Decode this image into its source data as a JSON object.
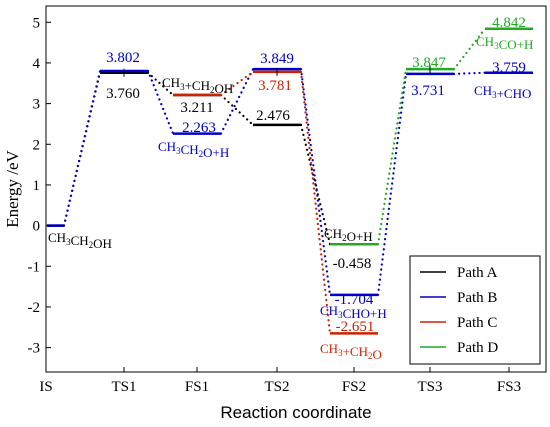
{
  "chart_data": {
    "type": "line",
    "xlabel": "Reaction coordinate",
    "ylabel": "Energy /eV",
    "categories": [
      "IS",
      "TS1",
      "FS1",
      "TS2",
      "FS2",
      "TS3",
      "FS3"
    ],
    "ylim": [
      -3.6,
      5.4
    ],
    "yticks": [
      -3,
      -2,
      -1,
      0,
      1,
      2,
      3,
      4,
      5
    ],
    "grid": false,
    "legend_position": "bottom-right",
    "series": [
      {
        "name": "Path A",
        "color": "#000000",
        "points": [
          {
            "state": "IS",
            "value": 0
          },
          {
            "state": "TS1",
            "value": 3.76
          },
          {
            "state": "FS1",
            "value": 3.211
          },
          {
            "state": "TS2",
            "value": 2.476
          },
          {
            "state": "FS2",
            "value": -0.458
          }
        ]
      },
      {
        "name": "Path B",
        "color": "#0000cc",
        "points": [
          {
            "state": "IS",
            "value": 0
          },
          {
            "state": "TS1",
            "value": 3.802
          },
          {
            "state": "FS1",
            "value": 2.263
          },
          {
            "state": "TS2",
            "value": 3.849
          },
          {
            "state": "FS2",
            "value": -1.704
          },
          {
            "state": "TS3",
            "value": 3.731
          },
          {
            "state": "FS3",
            "value": 3.759
          }
        ]
      },
      {
        "name": "Path C",
        "color": "#cc2200",
        "points": [
          {
            "state": "FS1",
            "value": 3.211
          },
          {
            "state": "TS2",
            "value": 3.781
          },
          {
            "state": "FS2",
            "value": -2.651
          }
        ]
      },
      {
        "name": "Path D",
        "color": "#22aa22",
        "points": [
          {
            "state": "FS2",
            "value": -0.458
          },
          {
            "state": "TS3",
            "value": 3.847
          },
          {
            "state": "FS3",
            "value": 4.842
          }
        ]
      }
    ],
    "value_labels": [
      {
        "text": "3.760",
        "color": "#000000"
      },
      {
        "text": "3.802",
        "color": "#0000cc"
      },
      {
        "text": "3.211",
        "color": "#000000"
      },
      {
        "text": "2.263",
        "color": "#0000cc"
      },
      {
        "text": "3.849",
        "color": "#0000cc"
      },
      {
        "text": "3.781",
        "color": "#cc2200"
      },
      {
        "text": "2.476",
        "color": "#000000"
      },
      {
        "text": "-0.458",
        "color": "#000000"
      },
      {
        "text": "-1.704",
        "color": "#0000cc"
      },
      {
        "text": "-2.651",
        "color": "#cc2200"
      },
      {
        "text": "3.847",
        "color": "#22aa22"
      },
      {
        "text": "3.731",
        "color": "#0000cc"
      },
      {
        "text": "4.842",
        "color": "#22aa22"
      },
      {
        "text": "3.759",
        "color": "#0000cc"
      }
    ],
    "species_labels": [
      {
        "text": "CH3CH2OH",
        "color": "#000000"
      },
      {
        "text": "CH3+CH2OH",
        "color": "#000000"
      },
      {
        "text": "CH3CH2O+H",
        "color": "#0000cc"
      },
      {
        "text": "CH2O+H",
        "color": "#000000"
      },
      {
        "text": "CH3CHO+H",
        "color": "#0000cc"
      },
      {
        "text": "CH3+CH2O",
        "color": "#cc2200"
      },
      {
        "text": "CH3CO+H",
        "color": "#22aa22"
      },
      {
        "text": "CH3+CHO",
        "color": "#0000cc"
      }
    ]
  }
}
